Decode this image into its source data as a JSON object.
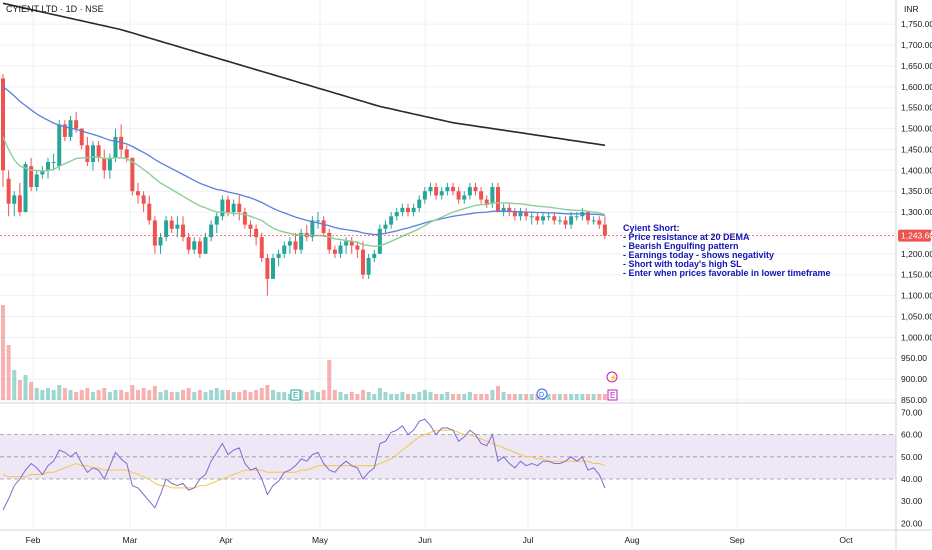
{
  "header": {
    "symbol": "CYIENT LTD · 1D · NSE",
    "currency": "INR"
  },
  "colors": {
    "up": "#26a69a",
    "down": "#ef5350",
    "ema20": "#8ccf98",
    "ema50": "#5b7fe0",
    "ema200": "#2a2a2a",
    "rsi": "#7e6ccf",
    "rsi_ma": "#f2c94c",
    "rsi_band": "#ede7f6",
    "annotation": "#1414b4",
    "grid": "#eef0f4"
  },
  "price_axis": {
    "ticks": [
      "1,750.00",
      "1,700.00",
      "1,650.00",
      "1,600.00",
      "1,550.00",
      "1,500.00",
      "1,450.00",
      "1,400.00",
      "1,350.00",
      "1,300.00",
      "1,250.00",
      "1,200.00",
      "1,150.00",
      "1,100.00",
      "1,050.00",
      "1,000.00",
      "950.00",
      "900.00",
      "850.00"
    ],
    "last_price_label": "1,243.60"
  },
  "rsi_axis": {
    "ticks": [
      "70.00",
      "60.00",
      "50.00",
      "40.00",
      "30.00",
      "20.00"
    ]
  },
  "time_axis": {
    "labels": [
      "Feb",
      "Mar",
      "Apr",
      "May",
      "Jun",
      "Jul",
      "Aug",
      "Sep",
      "Oct"
    ]
  },
  "annotation": {
    "lines": [
      "Cyient Short:",
      "- Price resistance at 20 DEMA",
      "- Bearish Engulfing pattern",
      "- Earnings today - shows negativity",
      "- Short with today's high SL",
      "- Enter when prices favorable in lower timeframe"
    ]
  },
  "events": {
    "earnings_past": "E",
    "earnings_upcoming": "E",
    "dividend": "D",
    "split": "⚡"
  },
  "chart_data": {
    "type": "candlestick",
    "title": "CYIENT LTD · 1D · NSE",
    "currency": "INR",
    "ylim": [
      850,
      1780
    ],
    "last_price": 1243.6,
    "ohlc": [
      [
        1620,
        1630,
        1360,
        1400
      ],
      [
        1380,
        1400,
        1290,
        1320
      ],
      [
        1320,
        1350,
        1290,
        1340
      ],
      [
        1340,
        1370,
        1290,
        1300
      ],
      [
        1300,
        1420,
        1300,
        1415
      ],
      [
        1410,
        1430,
        1350,
        1360
      ],
      [
        1360,
        1400,
        1350,
        1390
      ],
      [
        1390,
        1410,
        1380,
        1400
      ],
      [
        1400,
        1430,
        1380,
        1420
      ],
      [
        1420,
        1440,
        1400,
        1420
      ],
      [
        1410,
        1520,
        1400,
        1510
      ],
      [
        1510,
        1520,
        1470,
        1480
      ],
      [
        1480,
        1530,
        1470,
        1520
      ],
      [
        1520,
        1540,
        1490,
        1500
      ],
      [
        1500,
        1500,
        1450,
        1460
      ],
      [
        1460,
        1480,
        1410,
        1420
      ],
      [
        1420,
        1470,
        1400,
        1460
      ],
      [
        1460,
        1470,
        1420,
        1430
      ],
      [
        1430,
        1450,
        1380,
        1400
      ],
      [
        1400,
        1440,
        1380,
        1430
      ],
      [
        1430,
        1500,
        1420,
        1480
      ],
      [
        1480,
        1510,
        1430,
        1450
      ],
      [
        1450,
        1460,
        1420,
        1430
      ],
      [
        1430,
        1430,
        1340,
        1350
      ],
      [
        1350,
        1370,
        1320,
        1340
      ],
      [
        1340,
        1350,
        1300,
        1320
      ],
      [
        1320,
        1340,
        1270,
        1280
      ],
      [
        1280,
        1290,
        1200,
        1220
      ],
      [
        1220,
        1250,
        1200,
        1240
      ],
      [
        1240,
        1290,
        1230,
        1280
      ],
      [
        1280,
        1290,
        1250,
        1260
      ],
      [
        1260,
        1290,
        1240,
        1270
      ],
      [
        1270,
        1290,
        1230,
        1240
      ],
      [
        1240,
        1250,
        1200,
        1210
      ],
      [
        1210,
        1240,
        1200,
        1230
      ],
      [
        1230,
        1240,
        1190,
        1200
      ],
      [
        1200,
        1250,
        1200,
        1240
      ],
      [
        1240,
        1280,
        1230,
        1270
      ],
      [
        1270,
        1300,
        1250,
        1290
      ],
      [
        1290,
        1340,
        1280,
        1330
      ],
      [
        1330,
        1340,
        1290,
        1300
      ],
      [
        1300,
        1330,
        1290,
        1320
      ],
      [
        1320,
        1340,
        1280,
        1300
      ],
      [
        1300,
        1310,
        1260,
        1270
      ],
      [
        1270,
        1280,
        1240,
        1260
      ],
      [
        1260,
        1270,
        1220,
        1240
      ],
      [
        1240,
        1250,
        1180,
        1190
      ],
      [
        1190,
        1200,
        1100,
        1140
      ],
      [
        1140,
        1200,
        1140,
        1190
      ],
      [
        1190,
        1210,
        1170,
        1200
      ],
      [
        1200,
        1230,
        1190,
        1220
      ],
      [
        1220,
        1240,
        1200,
        1230
      ],
      [
        1230,
        1250,
        1200,
        1210
      ],
      [
        1210,
        1260,
        1200,
        1250
      ],
      [
        1250,
        1270,
        1230,
        1240
      ],
      [
        1240,
        1290,
        1230,
        1280
      ],
      [
        1280,
        1300,
        1260,
        1280
      ],
      [
        1280,
        1290,
        1240,
        1250
      ],
      [
        1250,
        1260,
        1200,
        1210
      ],
      [
        1210,
        1220,
        1190,
        1200
      ],
      [
        1200,
        1230,
        1190,
        1220
      ],
      [
        1220,
        1240,
        1200,
        1230
      ],
      [
        1230,
        1240,
        1200,
        1220
      ],
      [
        1220,
        1230,
        1190,
        1210
      ],
      [
        1210,
        1230,
        1140,
        1150
      ],
      [
        1150,
        1200,
        1140,
        1190
      ],
      [
        1190,
        1210,
        1180,
        1200
      ],
      [
        1200,
        1270,
        1200,
        1260
      ],
      [
        1260,
        1280,
        1250,
        1270
      ],
      [
        1270,
        1300,
        1260,
        1290
      ],
      [
        1290,
        1310,
        1280,
        1300
      ],
      [
        1300,
        1320,
        1290,
        1310
      ],
      [
        1310,
        1320,
        1290,
        1300
      ],
      [
        1300,
        1320,
        1290,
        1310
      ],
      [
        1310,
        1340,
        1300,
        1330
      ],
      [
        1330,
        1360,
        1320,
        1350
      ],
      [
        1350,
        1370,
        1340,
        1360
      ],
      [
        1360,
        1370,
        1330,
        1340
      ],
      [
        1340,
        1360,
        1330,
        1350
      ],
      [
        1350,
        1370,
        1340,
        1360
      ],
      [
        1360,
        1370,
        1340,
        1350
      ],
      [
        1350,
        1360,
        1320,
        1330
      ],
      [
        1330,
        1350,
        1320,
        1340
      ],
      [
        1340,
        1370,
        1330,
        1360
      ],
      [
        1360,
        1370,
        1340,
        1350
      ],
      [
        1350,
        1360,
        1320,
        1330
      ],
      [
        1330,
        1340,
        1310,
        1320
      ],
      [
        1320,
        1370,
        1310,
        1360
      ],
      [
        1360,
        1370,
        1300,
        1300
      ],
      [
        1300,
        1320,
        1290,
        1310
      ],
      [
        1310,
        1320,
        1290,
        1300
      ],
      [
        1300,
        1310,
        1280,
        1290
      ],
      [
        1290,
        1310,
        1280,
        1300
      ],
      [
        1300,
        1310,
        1280,
        1290
      ],
      [
        1290,
        1300,
        1270,
        1290
      ],
      [
        1290,
        1300,
        1270,
        1280
      ],
      [
        1280,
        1300,
        1270,
        1290
      ],
      [
        1290,
        1300,
        1280,
        1290
      ],
      [
        1290,
        1300,
        1270,
        1280
      ],
      [
        1280,
        1290,
        1270,
        1280
      ],
      [
        1280,
        1290,
        1260,
        1270
      ],
      [
        1270,
        1300,
        1260,
        1290
      ],
      [
        1290,
        1300,
        1280,
        1290
      ],
      [
        1290,
        1310,
        1280,
        1300
      ],
      [
        1300,
        1300,
        1270,
        1280
      ],
      [
        1280,
        1290,
        1270,
        1280
      ],
      [
        1280,
        1290,
        1260,
        1270
      ],
      [
        1270,
        1290,
        1235,
        1243.6
      ]
    ],
    "volume_relative": [
      0.95,
      0.55,
      0.3,
      0.2,
      0.25,
      0.18,
      0.12,
      0.1,
      0.12,
      0.1,
      0.15,
      0.12,
      0.1,
      0.08,
      0.1,
      0.12,
      0.08,
      0.1,
      0.12,
      0.08,
      0.1,
      0.1,
      0.08,
      0.15,
      0.1,
      0.12,
      0.1,
      0.14,
      0.08,
      0.1,
      0.08,
      0.08,
      0.1,
      0.12,
      0.08,
      0.1,
      0.08,
      0.1,
      0.12,
      0.1,
      0.1,
      0.08,
      0.08,
      0.1,
      0.08,
      0.1,
      0.12,
      0.15,
      0.1,
      0.08,
      0.08,
      0.06,
      0.08,
      0.1,
      0.08,
      0.1,
      0.08,
      0.1,
      0.4,
      0.1,
      0.08,
      0.06,
      0.08,
      0.06,
      0.1,
      0.08,
      0.06,
      0.12,
      0.08,
      0.06,
      0.06,
      0.08,
      0.06,
      0.06,
      0.08,
      0.1,
      0.08,
      0.06,
      0.06,
      0.08,
      0.06,
      0.06,
      0.06,
      0.08,
      0.06,
      0.06,
      0.06,
      0.1,
      0.14,
      0.08,
      0.06,
      0.06,
      0.06,
      0.06,
      0.06,
      0.06,
      0.06,
      0.06,
      0.06,
      0.06,
      0.06,
      0.06,
      0.06,
      0.06,
      0.06,
      0.06,
      0.06,
      0.06
    ],
    "ema20": [
      1480,
      1450,
      1425,
      1410,
      1405,
      1400,
      1400,
      1398,
      1400,
      1402,
      1410,
      1416,
      1422,
      1428,
      1430,
      1430,
      1432,
      1432,
      1428,
      1428,
      1430,
      1430,
      1428,
      1420,
      1412,
      1402,
      1392,
      1380,
      1370,
      1362,
      1354,
      1346,
      1338,
      1330,
      1322,
      1315,
      1310,
      1305,
      1300,
      1300,
      1298,
      1297,
      1296,
      1294,
      1290,
      1285,
      1280,
      1270,
      1262,
      1256,
      1252,
      1249,
      1246,
      1245,
      1244,
      1244,
      1244,
      1243,
      1240,
      1236,
      1234,
      1232,
      1230,
      1228,
      1222,
      1220,
      1218,
      1220,
      1224,
      1230,
      1236,
      1242,
      1248,
      1254,
      1260,
      1268,
      1276,
      1282,
      1288,
      1294,
      1300,
      1304,
      1308,
      1312,
      1316,
      1318,
      1318,
      1322,
      1322,
      1322,
      1322,
      1320,
      1320,
      1318,
      1316,
      1314,
      1313,
      1312,
      1310,
      1308,
      1306,
      1305,
      1304,
      1304,
      1302,
      1300,
      1298,
      1294
    ],
    "ema50": [
      1600,
      1590,
      1578,
      1565,
      1555,
      1545,
      1535,
      1527,
      1520,
      1513,
      1508,
      1504,
      1501,
      1498,
      1494,
      1490,
      1486,
      1482,
      1477,
      1472,
      1470,
      1467,
      1463,
      1457,
      1450,
      1443,
      1435,
      1426,
      1418,
      1411,
      1404,
      1397,
      1390,
      1383,
      1376,
      1369,
      1364,
      1359,
      1354,
      1352,
      1348,
      1345,
      1342,
      1338,
      1334,
      1329,
      1323,
      1316,
      1309,
      1303,
      1298,
      1293,
      1288,
      1284,
      1280,
      1277,
      1274,
      1271,
      1267,
      1263,
      1260,
      1258,
      1256,
      1254,
      1250,
      1248,
      1246,
      1247,
      1249,
      1252,
      1255,
      1259,
      1262,
      1266,
      1270,
      1274,
      1278,
      1281,
      1284,
      1287,
      1290,
      1292,
      1294,
      1296,
      1298,
      1299,
      1300,
      1302,
      1302,
      1302,
      1302,
      1301,
      1301,
      1300,
      1300,
      1299,
      1299,
      1298,
      1298,
      1297,
      1296,
      1296,
      1296,
      1296,
      1295,
      1295,
      1294,
      1292
    ],
    "ema200": [
      1800,
      1797,
      1794,
      1791,
      1788,
      1785,
      1782,
      1779,
      1776,
      1773,
      1770,
      1767,
      1764,
      1761,
      1758,
      1755,
      1752,
      1749,
      1746,
      1743,
      1740,
      1737,
      1733,
      1729,
      1725,
      1721,
      1717,
      1713,
      1709,
      1705,
      1701,
      1697,
      1693,
      1689,
      1685,
      1681,
      1677,
      1673,
      1669,
      1665,
      1661,
      1657,
      1653,
      1649,
      1645,
      1641,
      1637,
      1633,
      1629,
      1625,
      1621,
      1617,
      1613,
      1609,
      1605,
      1601,
      1597,
      1593,
      1589,
      1585,
      1581,
      1577,
      1573,
      1569,
      1565,
      1561,
      1557,
      1553,
      1550,
      1547,
      1544,
      1541,
      1538,
      1535,
      1532,
      1529,
      1526,
      1523,
      1520,
      1517,
      1514,
      1512,
      1510,
      1508,
      1506,
      1504,
      1502,
      1500,
      1498,
      1496,
      1494,
      1492,
      1490,
      1488,
      1486,
      1484,
      1482,
      1480,
      1478,
      1476,
      1474,
      1472,
      1470,
      1468,
      1466,
      1464,
      1462,
      1460
    ],
    "rsi": [
      26,
      31,
      37,
      40,
      44,
      47,
      45,
      42,
      46,
      48,
      53,
      52,
      50,
      52,
      47,
      43,
      45,
      44,
      40,
      46,
      52,
      49,
      47,
      37,
      36,
      33,
      30,
      27,
      33,
      40,
      38,
      37,
      38,
      35,
      36,
      40,
      42,
      48,
      52,
      56,
      51,
      53,
      54,
      47,
      44,
      45,
      40,
      33,
      37,
      39,
      43,
      44,
      46,
      49,
      48,
      51,
      52,
      47,
      44,
      43,
      46,
      48,
      46,
      45,
      40,
      43,
      45,
      56,
      57,
      61,
      62,
      64,
      60,
      62,
      66,
      67,
      64,
      60,
      63,
      63,
      62,
      57,
      59,
      62,
      60,
      56,
      55,
      60,
      48,
      50,
      47,
      45,
      48,
      46,
      47,
      46,
      48,
      48,
      47,
      47,
      48,
      50,
      48,
      50,
      44,
      45,
      42,
      36
    ],
    "rsi_ma": [
      42,
      41,
      41,
      41,
      41,
      42,
      42,
      42,
      43,
      43,
      44,
      45,
      46,
      47,
      46,
      46,
      45,
      45,
      44,
      44,
      44,
      44,
      44,
      43,
      42,
      41,
      40,
      38,
      37,
      37,
      36,
      36,
      36,
      36,
      36,
      37,
      37,
      38,
      39,
      40,
      41,
      42,
      43,
      44,
      44,
      44,
      44,
      43,
      43,
      43,
      43,
      43,
      43,
      44,
      44,
      45,
      46,
      46,
      46,
      46,
      46,
      46,
      46,
      46,
      46,
      46,
      46,
      47,
      48,
      49,
      51,
      53,
      55,
      57,
      59,
      60,
      61,
      62,
      62,
      62,
      62,
      61,
      60,
      60,
      59,
      58,
      57,
      56,
      55,
      54,
      53,
      52,
      51,
      50,
      50,
      49,
      49,
      48,
      48,
      48,
      48,
      48,
      48,
      48,
      48,
      47,
      47,
      46
    ],
    "rsi_levels": {
      "upper": 60,
      "middle": 50,
      "lower": 40
    },
    "rsi_ylim": [
      17,
      72
    ]
  }
}
